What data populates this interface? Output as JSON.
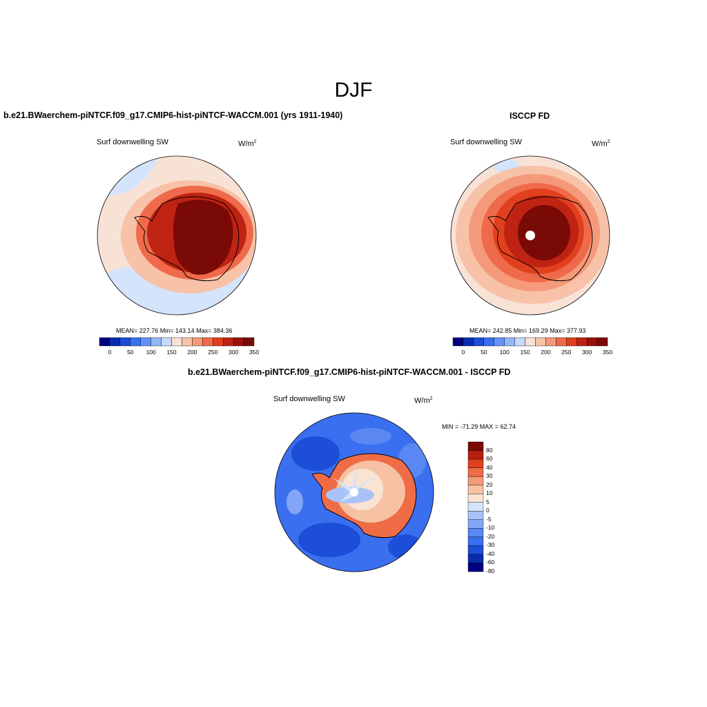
{
  "figure": {
    "title": "DJF"
  },
  "colors": {
    "model_scale": [
      "#000080",
      "#0a2bb0",
      "#1c4ed8",
      "#3a6ff0",
      "#6592f7",
      "#94b7f8",
      "#c6dafa",
      "#f8e2d6",
      "#f7c2a8",
      "#f49a7a",
      "#ef6a4a",
      "#e0401e",
      "#bf2313",
      "#9a120b",
      "#7a0a06"
    ],
    "diff_scale": [
      "#000080",
      "#0a2bb0",
      "#1c4ed8",
      "#3a6ff0",
      "#5a87f2",
      "#82a6f5",
      "#a9c2f8",
      "#d4e4fb",
      "#fbe3d3",
      "#f7c2a4",
      "#f49a78",
      "#ef6c47",
      "#e0401e",
      "#b61f10",
      "#7a0a06"
    ]
  },
  "chart_data": [
    {
      "type": "heatmap",
      "title": "b.e21.BWaerchem-piNTCF.f09_g17.CMIP6-hist-piNTCF-WACCM.001 (yrs 1911-1940)",
      "variable": "Surf downwelling SW",
      "units": "W/m",
      "units_sup": "2",
      "stats": "MEAN= 227.76  Min= 143.14  Max= 384.36",
      "colorbar_ticks": [
        "0",
        "50",
        "100",
        "150",
        "200",
        "250",
        "300",
        "350"
      ],
      "projection": "south polar stereographic"
    },
    {
      "type": "heatmap",
      "title": "ISCCP FD",
      "variable": "Surf downwelling SW",
      "units": "W/m",
      "units_sup": "2",
      "stats": "MEAN= 242.85  Min= 169.29  Max= 377.93",
      "colorbar_ticks": [
        "0",
        "50",
        "100",
        "150",
        "200",
        "250",
        "300",
        "350"
      ],
      "projection": "south polar stereographic"
    },
    {
      "type": "heatmap",
      "title": "b.e21.BWaerchem-piNTCF.f09_g17.CMIP6-hist-piNTCF-WACCM.001 - ISCCP FD",
      "variable": "Surf downwelling SW",
      "units": "W/m",
      "units_sup": "2",
      "stats": "MIN = -71.29 MAX =  62.74",
      "colorbar_ticks": [
        "80",
        "60",
        "40",
        "30",
        "20",
        "10",
        "5",
        "0",
        "-5",
        "-10",
        "-20",
        "-30",
        "-40",
        "-60",
        "-80"
      ],
      "projection": "south polar stereographic"
    }
  ]
}
